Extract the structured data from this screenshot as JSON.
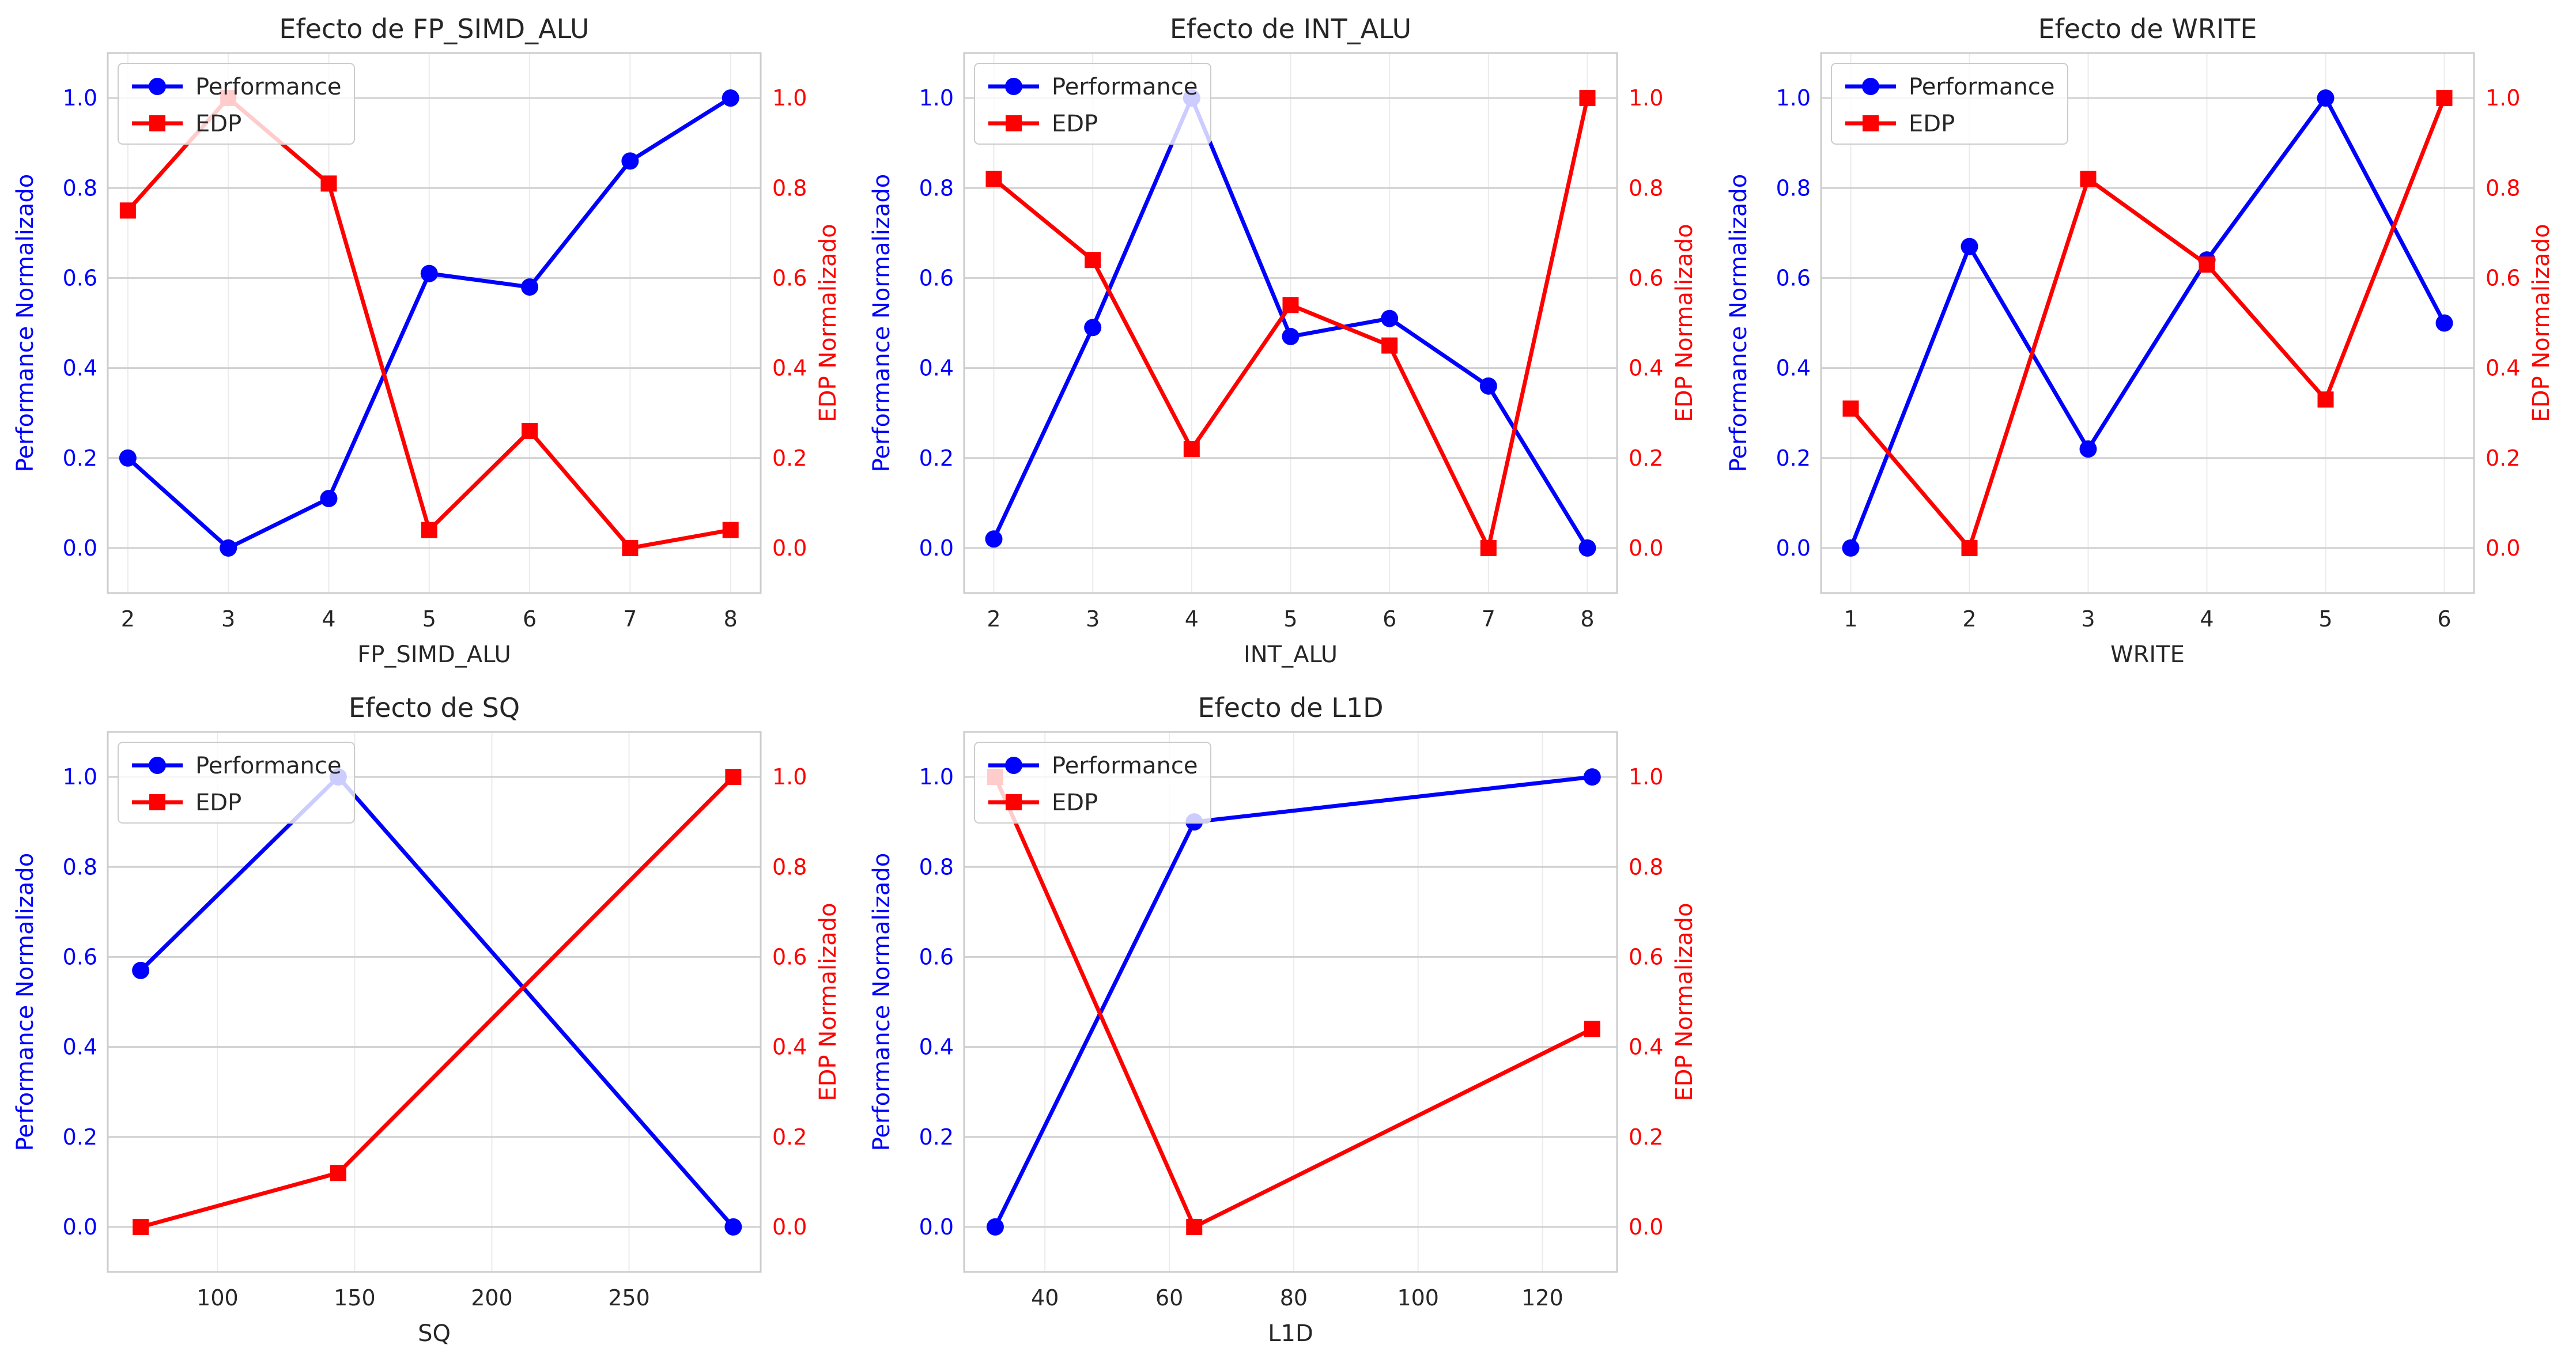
{
  "colors": {
    "performance": "#0000ff",
    "edp": "#ff0000",
    "grid": "#d0d0d0",
    "frame": "#cccccc"
  },
  "legend": {
    "performance": "Performance",
    "edp": "EDP",
    "placement": "upper-left"
  },
  "chart_data": [
    {
      "type": "line",
      "title": "Efecto de FP_SIMD_ALU",
      "xlabel": "FP_SIMD_ALU",
      "ylabel_left": "Performance Normalizado",
      "ylabel_right": "EDP Normalizado",
      "xlim": [
        1.8,
        8.3
      ],
      "ylim": [
        -0.1,
        1.1
      ],
      "xticks": [
        2,
        3,
        4,
        5,
        6,
        7,
        8
      ],
      "yticks": [
        0.0,
        0.2,
        0.4,
        0.6,
        0.8,
        1.0
      ],
      "x": [
        2,
        3,
        4,
        5,
        6,
        7,
        8
      ],
      "series": [
        {
          "name": "Performance",
          "marker": "circle",
          "axis": "left",
          "values": [
            0.2,
            0.0,
            0.11,
            0.61,
            0.58,
            0.86,
            1.0
          ]
        },
        {
          "name": "EDP",
          "marker": "square",
          "axis": "right",
          "values": [
            0.75,
            1.0,
            0.81,
            0.04,
            0.26,
            0.0,
            0.04
          ]
        }
      ]
    },
    {
      "type": "line",
      "title": "Efecto de INT_ALU",
      "xlabel": "INT_ALU",
      "ylabel_left": "Performance Normalizado",
      "ylabel_right": "EDP Normalizado",
      "xlim": [
        1.7,
        8.3
      ],
      "ylim": [
        -0.1,
        1.1
      ],
      "xticks": [
        2,
        3,
        4,
        5,
        6,
        7,
        8
      ],
      "yticks": [
        0.0,
        0.2,
        0.4,
        0.6,
        0.8,
        1.0
      ],
      "x": [
        2,
        3,
        4,
        5,
        6,
        7,
        8
      ],
      "series": [
        {
          "name": "Performance",
          "marker": "circle",
          "axis": "left",
          "values": [
            0.02,
            0.49,
            1.0,
            0.47,
            0.51,
            0.36,
            0.0
          ]
        },
        {
          "name": "EDP",
          "marker": "square",
          "axis": "right",
          "values": [
            0.82,
            0.64,
            0.22,
            0.54,
            0.45,
            0.0,
            1.0
          ]
        }
      ]
    },
    {
      "type": "line",
      "title": "Efecto de WRITE",
      "xlabel": "WRITE",
      "ylabel_left": "Performance Normalizado",
      "ylabel_right": "EDP Normalizado",
      "xlim": [
        0.75,
        6.25
      ],
      "ylim": [
        -0.1,
        1.1
      ],
      "xticks": [
        1,
        2,
        3,
        4,
        5,
        6
      ],
      "yticks": [
        0.0,
        0.2,
        0.4,
        0.6,
        0.8,
        1.0
      ],
      "x": [
        1,
        2,
        3,
        4,
        5,
        6
      ],
      "series": [
        {
          "name": "Performance",
          "marker": "circle",
          "axis": "left",
          "values": [
            0.0,
            0.67,
            0.22,
            0.64,
            1.0,
            0.5
          ]
        },
        {
          "name": "EDP",
          "marker": "square",
          "axis": "right",
          "values": [
            0.31,
            0.0,
            0.82,
            0.63,
            0.33,
            1.0
          ]
        }
      ]
    },
    {
      "type": "line",
      "title": "Efecto de SQ",
      "xlabel": "SQ",
      "ylabel_left": "Performance Normalizado",
      "ylabel_right": "EDP Normalizado",
      "xlim": [
        60,
        298
      ],
      "ylim": [
        -0.1,
        1.1
      ],
      "xticks": [
        100,
        150,
        200,
        250
      ],
      "yticks": [
        0.0,
        0.2,
        0.4,
        0.6,
        0.8,
        1.0
      ],
      "x": [
        72,
        144,
        288
      ],
      "series": [
        {
          "name": "Performance",
          "marker": "circle",
          "axis": "left",
          "values": [
            0.57,
            1.0,
            0.0
          ]
        },
        {
          "name": "EDP",
          "marker": "square",
          "axis": "right",
          "values": [
            0.0,
            0.12,
            1.0
          ]
        }
      ]
    },
    {
      "type": "line",
      "title": "Efecto de L1D",
      "xlabel": "L1D",
      "ylabel_left": "Performance Normalizado",
      "ylabel_right": "EDP Normalizado",
      "xlim": [
        27,
        132
      ],
      "ylim": [
        -0.1,
        1.1
      ],
      "xticks": [
        40,
        60,
        80,
        100,
        120
      ],
      "yticks": [
        0.0,
        0.2,
        0.4,
        0.6,
        0.8,
        1.0
      ],
      "x": [
        32,
        64,
        128
      ],
      "series": [
        {
          "name": "Performance",
          "marker": "circle",
          "axis": "left",
          "values": [
            0.0,
            0.9,
            1.0
          ]
        },
        {
          "name": "EDP",
          "marker": "square",
          "axis": "right",
          "values": [
            1.0,
            0.0,
            0.44
          ]
        }
      ]
    }
  ]
}
